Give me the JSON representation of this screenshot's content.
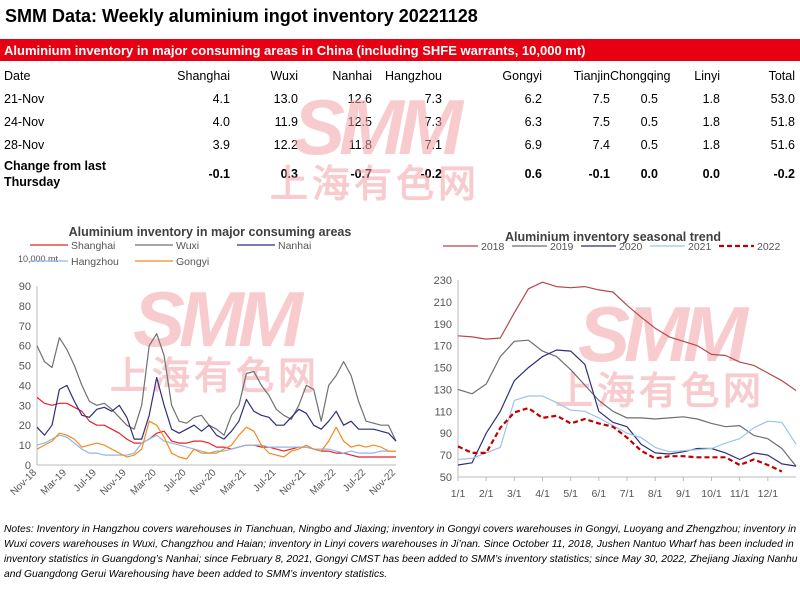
{
  "title": "SMM Data: Weekly aluminium ingot inventory 20221128",
  "table": {
    "caption": "Aluminium inventory in major consuming areas in China (including SHFE warrants, 10,000 mt)",
    "headers": [
      "Date",
      "Shanghai",
      "Wuxi",
      "Nanhai",
      "Hangzhou",
      "Gongyi",
      "Tianjin",
      "Chongqing",
      "Linyi",
      "Total"
    ],
    "rows": [
      [
        "21-Nov",
        "4.1",
        "13.0",
        "12.6",
        "7.3",
        "6.2",
        "7.5",
        "0.5",
        "1.8",
        "53.0"
      ],
      [
        "24-Nov",
        "4.0",
        "11.9",
        "12.5",
        "7.3",
        "6.3",
        "7.5",
        "0.5",
        "1.8",
        "51.8"
      ],
      [
        "28-Nov",
        "3.9",
        "12.2",
        "11.8",
        "7.1",
        "6.9",
        "7.4",
        "0.5",
        "1.8",
        "51.6"
      ]
    ],
    "change": [
      "Change from last Thursday",
      "-0.1",
      "0.3",
      "-0.7",
      "-0.2",
      "0.6",
      "-0.1",
      "0.0",
      "0.0",
      "-0.2"
    ]
  },
  "watermark": {
    "logo": "SMM",
    "cn": "上海有色网",
    "color": "#f4a3a8"
  },
  "chart_data": [
    {
      "type": "line",
      "title": "Aluminium  inventory in major consuming areas",
      "ylabel": "10,000 mt",
      "ylim": [
        0,
        90
      ],
      "yticks": [
        0,
        10,
        20,
        30,
        40,
        50,
        60,
        70,
        80,
        90
      ],
      "x_labels": [
        "Nov-18",
        "Mar-19",
        "Jul-19",
        "Nov-19",
        "Mar-20",
        "Jul-20",
        "Nov-20",
        "Mar-21",
        "Jul-21",
        "Nov-21",
        "Mar-22",
        "Jul-22",
        "Nov-22"
      ],
      "x_note": "monthly points, Nov-18 to Nov-22",
      "series": [
        {
          "name": "Shanghai",
          "color": "#e8202a",
          "values": [
            34,
            31,
            30,
            31,
            31,
            29,
            27,
            22,
            20,
            20,
            18,
            16,
            13,
            11,
            11,
            13,
            16,
            17,
            12,
            11,
            11,
            12,
            12,
            11,
            9,
            9,
            8,
            9,
            10,
            10,
            9,
            9,
            8,
            7,
            8,
            9,
            9,
            8,
            7,
            7,
            6,
            6,
            5,
            4,
            4,
            4,
            4,
            4,
            4
          ]
        },
        {
          "name": "Wuxi",
          "color": "#707070",
          "values": [
            60,
            52,
            49,
            64,
            58,
            50,
            40,
            32,
            30,
            31,
            28,
            24,
            20,
            18,
            30,
            60,
            66,
            55,
            30,
            22,
            21,
            24,
            25,
            20,
            18,
            15,
            25,
            30,
            46,
            47,
            40,
            35,
            28,
            25,
            23,
            30,
            40,
            38,
            22,
            40,
            45,
            52,
            45,
            32,
            22,
            21,
            20,
            20,
            12
          ]
        },
        {
          "name": "Nanhai",
          "color": "#2e2f7a",
          "values": [
            19,
            15,
            20,
            38,
            40,
            32,
            25,
            24,
            28,
            29,
            27,
            30,
            24,
            13,
            13,
            25,
            44,
            30,
            18,
            16,
            18,
            20,
            17,
            20,
            15,
            13,
            17,
            22,
            33,
            27,
            25,
            24,
            20,
            20,
            24,
            28,
            26,
            20,
            18,
            22,
            27,
            20,
            22,
            18,
            18,
            18,
            17,
            16,
            12
          ]
        },
        {
          "name": "Hangzhou",
          "color": "#8fb8e8",
          "values": [
            10,
            11,
            13,
            15,
            14,
            11,
            8,
            6,
            6,
            5,
            5,
            5,
            5,
            6,
            11,
            13,
            15,
            12,
            11,
            10,
            9,
            8,
            7,
            6,
            7,
            7,
            8,
            9,
            10,
            10,
            10,
            9,
            9,
            9,
            9,
            9,
            9,
            8,
            8,
            8,
            7,
            6,
            7,
            6,
            6,
            6,
            7,
            7,
            7
          ]
        },
        {
          "name": "Gongyi",
          "color": "#f28a1e",
          "values": [
            8,
            10,
            12,
            16,
            15,
            13,
            9,
            10,
            11,
            10,
            8,
            6,
            4,
            5,
            8,
            22,
            20,
            14,
            6,
            4,
            3,
            8,
            6,
            6,
            6,
            8,
            10,
            15,
            19,
            17,
            10,
            6,
            5,
            4,
            7,
            8,
            10,
            8,
            7,
            12,
            19,
            12,
            9,
            10,
            9,
            10,
            9,
            7,
            7
          ]
        }
      ]
    },
    {
      "type": "line",
      "title": "Aluminium  inventory seasonal trend",
      "ylim": [
        50,
        230
      ],
      "yticks": [
        50,
        70,
        90,
        110,
        130,
        150,
        170,
        190,
        210,
        230
      ],
      "x_labels": [
        "1/1",
        "2/1",
        "3/1",
        "4/1",
        "5/1",
        "6/1",
        "7/1",
        "8/1",
        "9/1",
        "10/1",
        "11/1",
        "12/1"
      ],
      "x_note": "semi-monthly points from 1/1 to year end",
      "series": [
        {
          "name": "2018",
          "color": "#b5484a",
          "dash": false,
          "values": [
            179,
            178,
            176,
            177,
            200,
            222,
            228,
            224,
            223,
            224,
            221,
            219,
            207,
            196,
            186,
            178,
            174,
            170,
            162,
            161,
            155,
            152,
            145,
            138,
            129
          ]
        },
        {
          "name": "2019",
          "color": "#6e6e6e",
          "dash": false,
          "values": [
            130,
            126,
            135,
            160,
            174,
            175,
            165,
            160,
            148,
            134,
            120,
            110,
            104,
            104,
            103,
            104,
            105,
            103,
            99,
            96,
            97,
            88,
            85,
            76,
            60
          ]
        },
        {
          "name": "2020",
          "color": "#2e2f7a",
          "dash": false,
          "values": [
            61,
            63,
            90,
            110,
            138,
            150,
            160,
            166,
            165,
            153,
            110,
            100,
            96,
            80,
            72,
            71,
            73,
            76,
            76,
            72,
            66,
            72,
            70,
            62,
            60
          ]
        },
        {
          "name": "2021",
          "color": "#9cc3ea",
          "dash": false,
          "values": [
            66,
            67,
            72,
            77,
            120,
            124,
            124,
            118,
            111,
            110,
            104,
            97,
            90,
            86,
            77,
            73,
            74,
            75,
            76,
            81,
            85,
            95,
            101,
            100,
            80
          ]
        },
        {
          "name": "2022",
          "color": "#c00000",
          "dash": true,
          "values": [
            78,
            72,
            72,
            95,
            109,
            113,
            104,
            106,
            99,
            103,
            99,
            96,
            86,
            74,
            67,
            69,
            69,
            68,
            68,
            68,
            61,
            66,
            61,
            55,
            null
          ]
        }
      ]
    }
  ],
  "notes": "Notes: Inventory in Hangzhou covers warehouses in Tianchuan, Ningbo and Jiaxing; inventory in Gongyi covers warehouses in Gongyi, Luoyang and Zhengzhou; inventory in Wuxi covers warehouses in Wuxi, Changzhou and Haian; inventory in Linyi covers warehouses in Ji’nan. Since October 11, 2018, Jushen Nantuo Wharf has been included in inventory statistics in Guangdong’s Nanhai; since February 8, 2021, Gongyi CMST has been added to SMM’s inventory statistics; since May 30, 2022, Zhejiang Jiaxing Nanhu and Guangdong Gerui Warehousing have been added to SMM’s inventory statistics."
}
